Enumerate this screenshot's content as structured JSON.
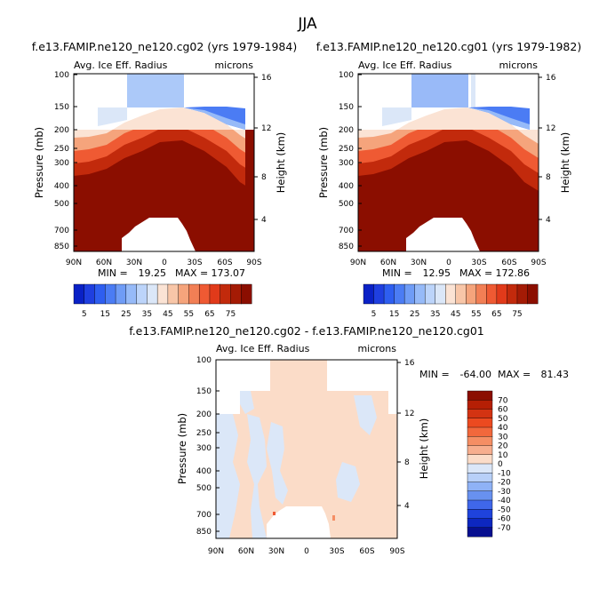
{
  "figure_title": "JJA",
  "chart_data": [
    {
      "id": "panel1",
      "type": "heatmap",
      "title": "f.e13.FAMIP.ne120_ne120.cg02 (yrs 1979-1984)",
      "variable": "Avg. Ice Eff. Radius",
      "units": "microns",
      "ylabel": "Pressure (mb)",
      "ylabel_right": "Height (km)",
      "x_ticks": [
        "90N",
        "60N",
        "30N",
        "0",
        "30S",
        "60S",
        "90S"
      ],
      "y_ticks": [
        "100",
        "150",
        "200",
        "250",
        "300",
        "400",
        "500",
        "700",
        "850"
      ],
      "height_ticks": [
        "16",
        "12",
        "8",
        "4"
      ],
      "min_label": "MIN =",
      "min": "19.25",
      "max_label": "MAX =",
      "max": "173.07"
    },
    {
      "id": "panel2",
      "type": "heatmap",
      "title": "f.e13.FAMIP.ne120_ne120.cg01 (yrs 1979-1982)",
      "variable": "Avg. Ice Eff. Radius",
      "units": "microns",
      "ylabel": "Pressure (mb)",
      "ylabel_right": "Height (km)",
      "x_ticks": [
        "90N",
        "60N",
        "30N",
        "0",
        "30S",
        "60S",
        "90S"
      ],
      "y_ticks": [
        "100",
        "150",
        "200",
        "250",
        "300",
        "400",
        "500",
        "700",
        "850"
      ],
      "height_ticks": [
        "16",
        "12",
        "8",
        "4"
      ],
      "min_label": "MIN =",
      "min": "12.95",
      "max_label": "MAX =",
      "max": "172.86"
    },
    {
      "id": "panel3",
      "type": "heatmap",
      "title": "f.e13.FAMIP.ne120_ne120.cg02 - f.e13.FAMIP.ne120_ne120.cg01",
      "variable": "Avg. Ice Eff. Radius",
      "units": "microns",
      "ylabel": "Pressure (mb)",
      "ylabel_right": "Height (km)",
      "x_ticks": [
        "90N",
        "60N",
        "30N",
        "0",
        "30S",
        "60S",
        "90S"
      ],
      "y_ticks": [
        "100",
        "150",
        "200",
        "250",
        "300",
        "400",
        "500",
        "700",
        "850"
      ],
      "height_ticks": [
        "16",
        "12",
        "8",
        "4"
      ],
      "min_label": "MIN =",
      "min": "-64.00",
      "max_label": "MAX =",
      "max": "81.43"
    }
  ],
  "colorbar_main": {
    "labels": [
      "5",
      "15",
      "25",
      "35",
      "45",
      "55",
      "65",
      "75"
    ],
    "colors": [
      "#0a21c6",
      "#1f3fe0",
      "#2e5ef0",
      "#4b7cf4",
      "#6f9cf6",
      "#96baf8",
      "#bcd4fa",
      "#dbe7f8",
      "#fbe3d4",
      "#f8c6a8",
      "#f5a47c",
      "#f27f55",
      "#ef5a33",
      "#e13a1a",
      "#c22a0c",
      "#a41b05",
      "#8b0e00"
    ]
  },
  "colorbar_diff": {
    "labels": [
      "70",
      "60",
      "50",
      "40",
      "30",
      "20",
      "10",
      "0",
      "-10",
      "-20",
      "-30",
      "-40",
      "-50",
      "-60",
      "-70"
    ],
    "colors": [
      "#8b0e00",
      "#b51f05",
      "#d33312",
      "#ec4a20",
      "#f2683c",
      "#f58e64",
      "#f7ae8e",
      "#fbdcc8",
      "#dbe7f8",
      "#b8d0f8",
      "#8fb2f6",
      "#6891f0",
      "#3f67ea",
      "#1f43dc",
      "#0d27c0",
      "#070f8f"
    ]
  }
}
